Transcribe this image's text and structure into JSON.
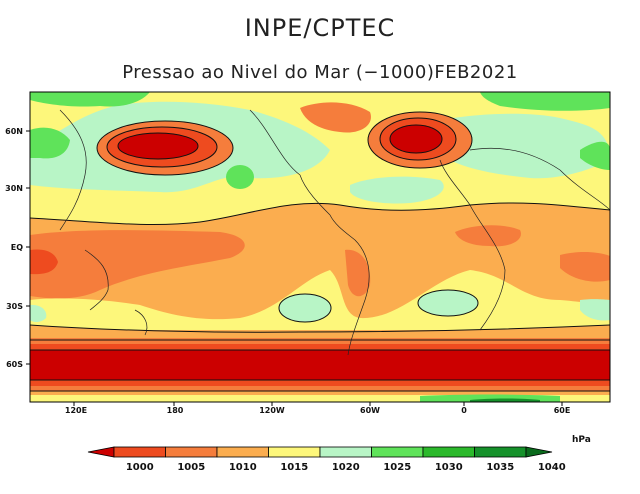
{
  "header": {
    "organization": "INPE/CPTEC",
    "subtitle": "Pressao ao Nivel do Mar (−1000)FEB2021"
  },
  "map": {
    "lat_labels": [
      "60N",
      "30N",
      "EQ",
      "30S",
      "60S"
    ],
    "lon_labels": [
      "120E",
      "180",
      "120W",
      "60W",
      "0",
      "60E"
    ]
  },
  "colorbar": {
    "units": "hPa",
    "levels": [
      "1000",
      "1005",
      "1010",
      "1015",
      "1020",
      "1025",
      "1030",
      "1035",
      "1040"
    ],
    "colors": [
      "#cc0000",
      "#ee4b1f",
      "#f57d3c",
      "#fbad4f",
      "#fdf77b",
      "#b8f5c6",
      "#5fe35a",
      "#2bb92b",
      "#15912a",
      "#0a6a1c"
    ]
  }
}
